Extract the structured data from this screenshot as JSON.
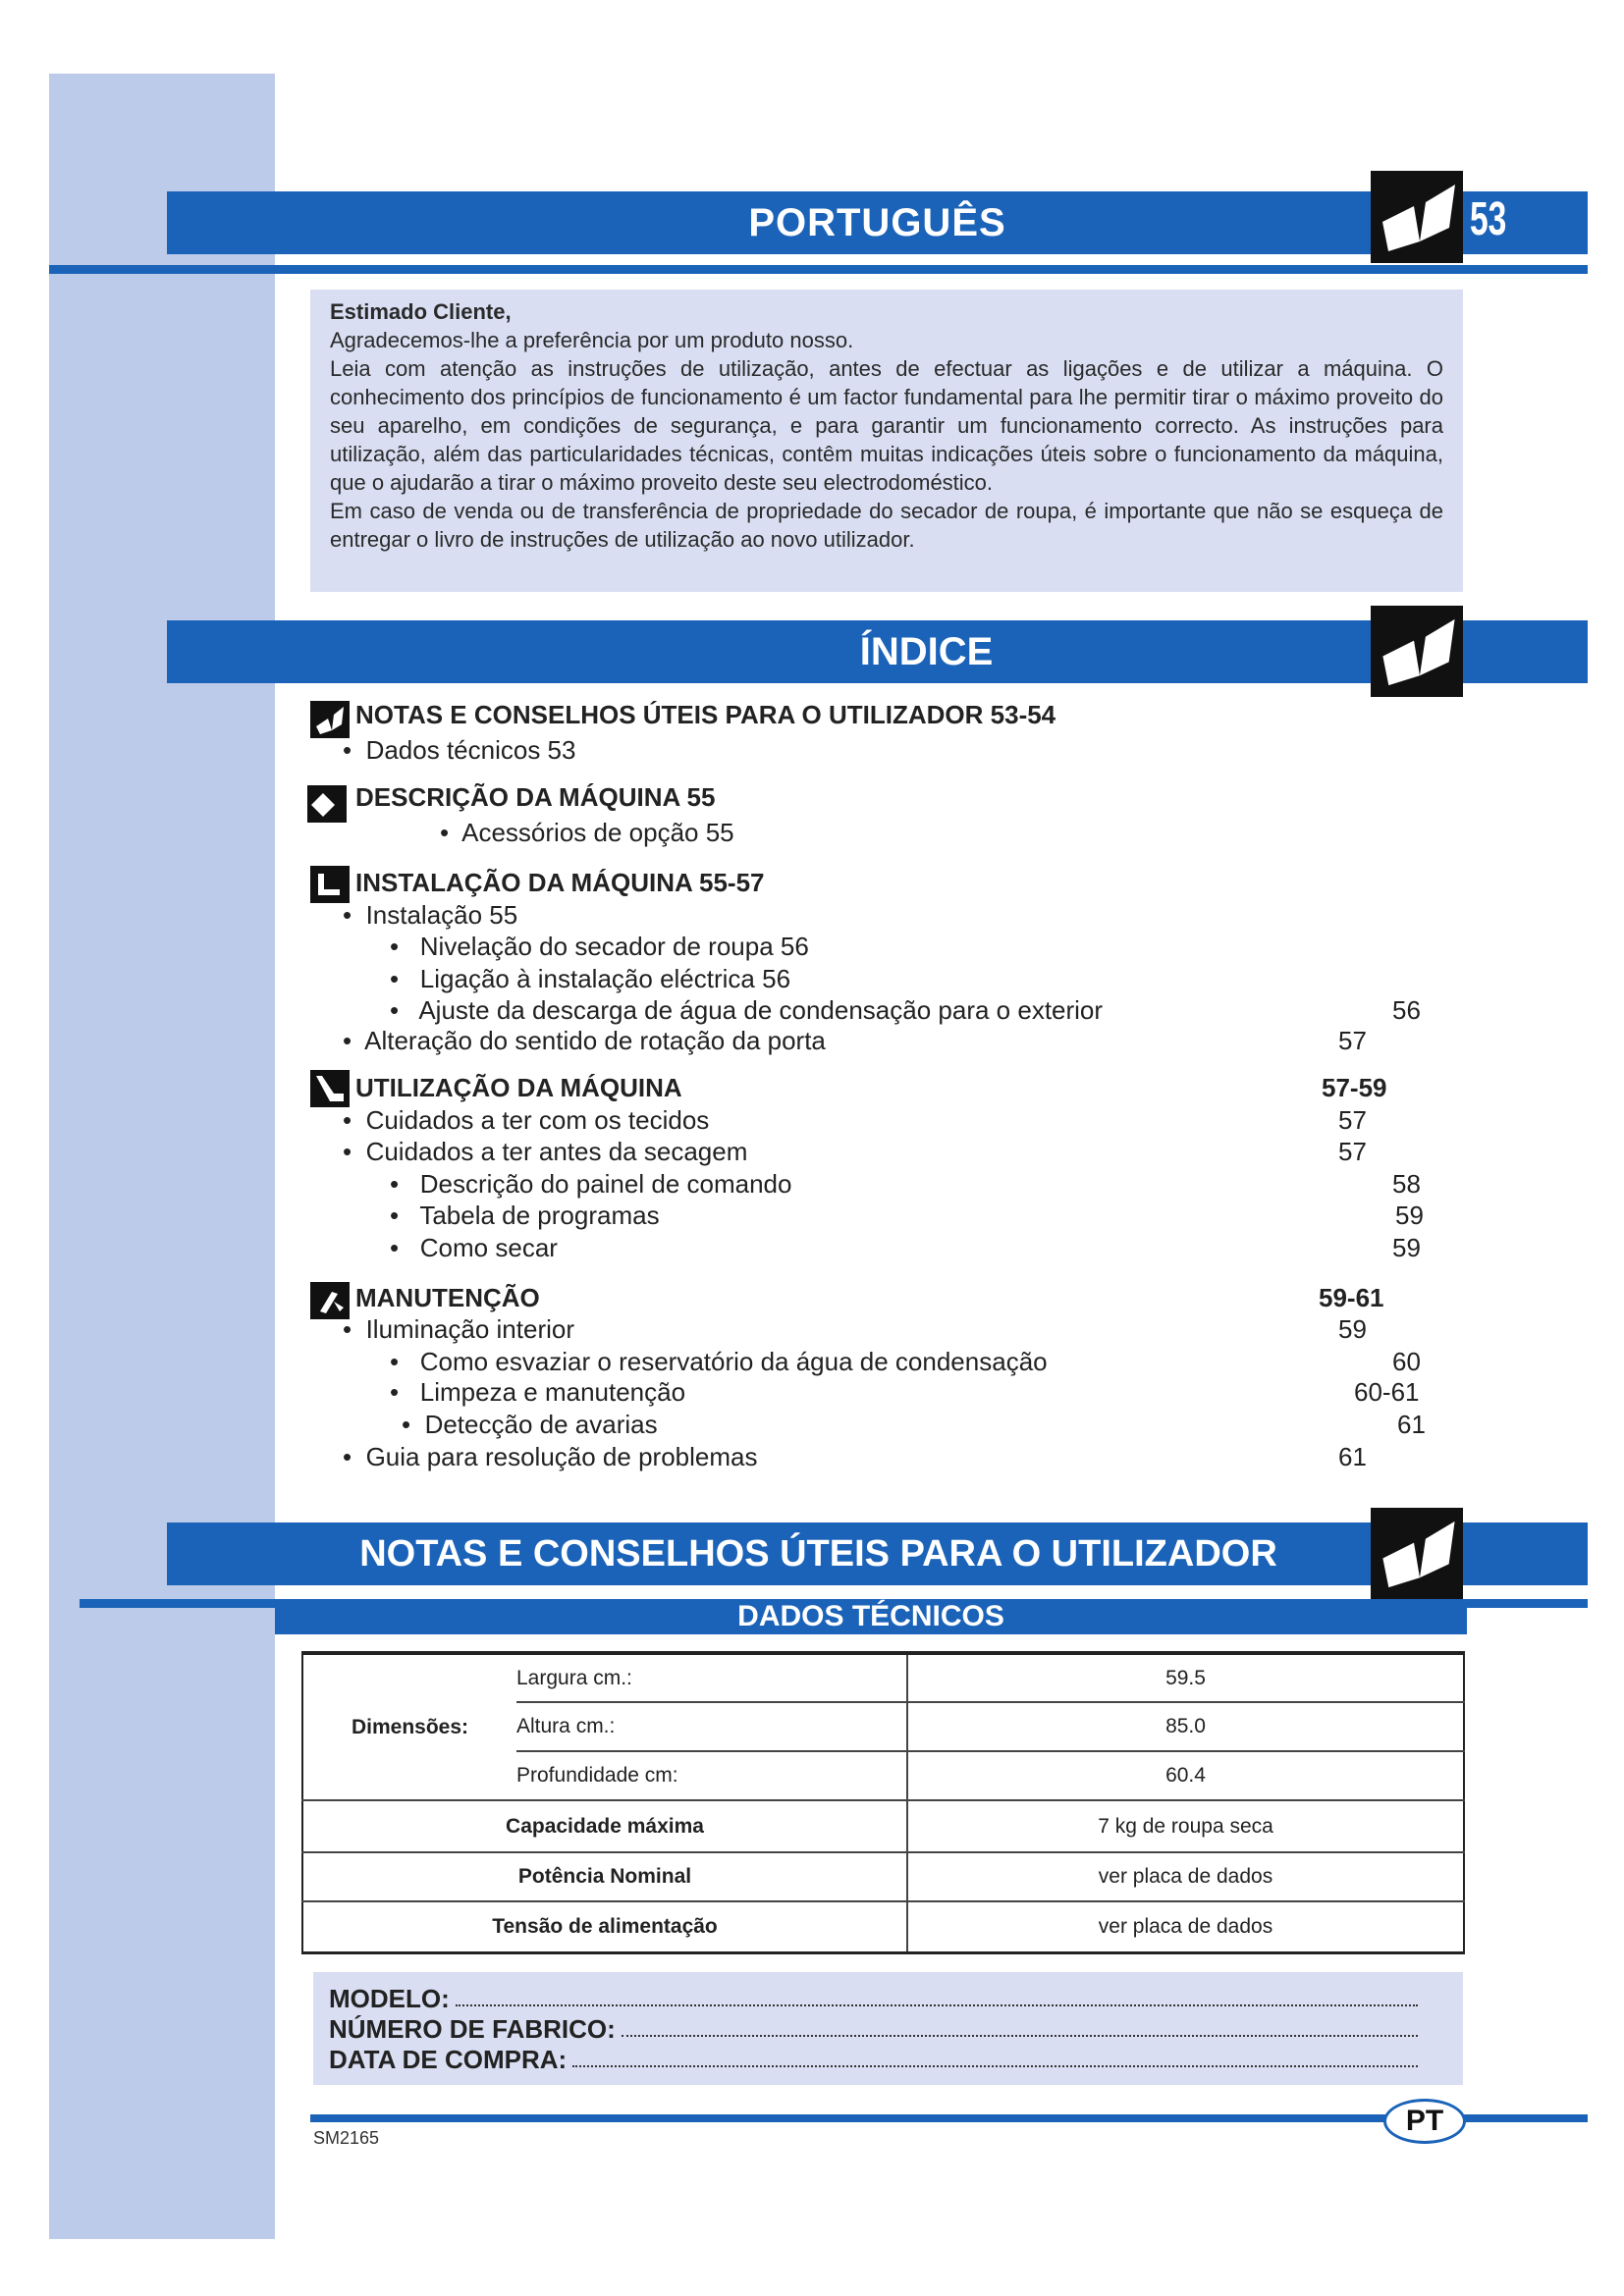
{
  "header": {
    "title": "PORTUGUÊS",
    "page_number": "53",
    "icon": "open-book-icon"
  },
  "intro": {
    "greeting": "Estimado Cliente,",
    "paragraphs": [
      "Agradecemos-lhe a preferência por  um produto nosso.",
      "Leia com atenção as instruções de utilização, antes de efectuar as ligações e de utilizar a máquina. O conhecimento dos princípios de funcionamento é um factor fundamental para lhe permitir tirar o máximo proveito do seu aparelho, em condições de segurança, e para garantir um funcionamento correcto. As instruções para utilização, além das particularidades técnicas, contêm muitas indicações úteis sobre o funcionamento da máquina, que o ajudarão a tirar o máximo proveito deste seu electrodoméstico.",
      "Em caso de venda ou de transferência de propriedade do secador de roupa, é importante que não se esqueça de entregar o livro de instruções de utilização ao novo utilizador."
    ]
  },
  "index": {
    "title": "ÍNDICE",
    "entries": [
      {
        "text": "NOTAS E CONSELHOS ÚTEIS PARA O UTILIZADOR  53-54",
        "page": ""
      },
      {
        "text": "Dados técnicos  53",
        "page": ""
      },
      {
        "text": "DESCRIÇÃO DA MÁQUINA  55",
        "page": ""
      },
      {
        "text": "Acessórios de opção  55",
        "page": ""
      },
      {
        "text": "INSTALAÇÃO DA MÁQUINA  55-57",
        "page": ""
      },
      {
        "text": "Instalação    55",
        "page": ""
      },
      {
        "text": "Nivelação do secador de roupa  56",
        "page": ""
      },
      {
        "text": "Ligação à instalação eléctrica  56",
        "page": ""
      },
      {
        "text": "Ajuste da descarga de água de condensação para o exterior",
        "page": "56"
      },
      {
        "text": "Alteração do sentido de rotação da porta",
        "page": "57"
      },
      {
        "text": "UTILIZAÇÃO DA MÁQUINA",
        "page": "57-59"
      },
      {
        "text": "Cuidados a ter com os tecidos",
        "page": "57"
      },
      {
        "text": "Cuidados a ter antes da secagem",
        "page": "57"
      },
      {
        "text": "Descrição do painel de comando",
        "page": "58"
      },
      {
        "text": "Tabela de programas",
        "page": "59"
      },
      {
        "text": "Como secar",
        "page": "59"
      },
      {
        "text": "MANUTENÇÃO",
        "page": "59-61"
      },
      {
        "text": "Iluminação interior",
        "page": "59"
      },
      {
        "text": "Como esvaziar o reservatório da água de condensação",
        "page": "60"
      },
      {
        "text": "Limpeza e manutenção",
        "page": "60-61"
      },
      {
        "text": "Detecção de avarias",
        "page": "61"
      },
      {
        "text": "Guia para resolução de problemas",
        "page": "61"
      }
    ]
  },
  "notes": {
    "title": "NOTAS E CONSELHOS ÚTEIS PARA O UTILIZADOR",
    "subtitle": "DADOS TÉCNICOS"
  },
  "table": {
    "dimensions_label": "Dimensões:",
    "rows": [
      {
        "label": "Largura cm.:",
        "value": "59.5"
      },
      {
        "label": "Altura cm.:",
        "value": "85.0"
      },
      {
        "label": "Profundidade cm:",
        "value": "60.4"
      },
      {
        "label": "Capacidade máxima",
        "value": "7 kg de roupa seca"
      },
      {
        "label": "Potência Nominal",
        "value": "ver placa de dados"
      },
      {
        "label": "Tensão de alimentação",
        "value": "ver placa de dados"
      }
    ]
  },
  "form": {
    "model": "MODELO:",
    "serial": "NÚMERO DE FABRICO:",
    "date": "DATA DE COMPRA:"
  },
  "footer": {
    "code": "SM2165",
    "lang_badge": "PT"
  },
  "colors": {
    "brand_blue": "#1b63b9",
    "light_panel": "#d9def2",
    "sidebar": "#bccbea"
  }
}
